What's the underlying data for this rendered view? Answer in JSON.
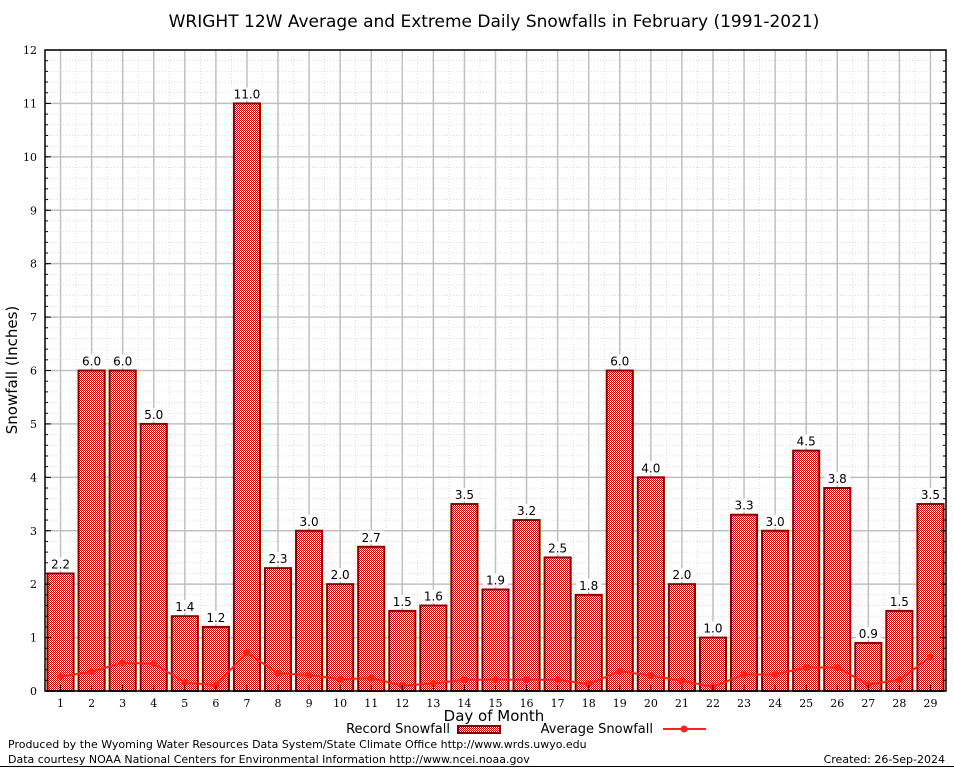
{
  "chart_data": {
    "type": "bar",
    "title": "WRIGHT 12W Average and Extreme Daily Snowfalls in February (1991-2021)",
    "xlabel": "Day of Month",
    "ylabel": "Snowfall (Inches)",
    "ylim": [
      0,
      12
    ],
    "yticks": [
      0,
      1,
      2,
      3,
      4,
      5,
      6,
      7,
      8,
      9,
      10,
      11,
      12
    ],
    "grid": true,
    "legend_placement": "bottom-center",
    "categories": [
      "1",
      "2",
      "3",
      "4",
      "5",
      "6",
      "7",
      "8",
      "9",
      "10",
      "11",
      "12",
      "13",
      "14",
      "15",
      "16",
      "17",
      "18",
      "19",
      "20",
      "21",
      "22",
      "23",
      "24",
      "25",
      "26",
      "27",
      "28",
      "29"
    ],
    "series": [
      {
        "name": "Record Snowfall",
        "kind": "bar",
        "color": "#8b0000",
        "values": [
          2.2,
          6.0,
          6.0,
          5.0,
          1.4,
          1.2,
          11.0,
          2.3,
          3.0,
          2.0,
          2.7,
          1.5,
          1.6,
          3.5,
          1.9,
          3.2,
          2.5,
          1.8,
          6.0,
          4.0,
          2.0,
          1.0,
          3.3,
          3.0,
          4.5,
          3.8,
          0.9,
          1.5,
          3.5
        ],
        "labels": [
          "2.2",
          "6.0",
          "6.0",
          "5.0",
          "1.4",
          "1.2",
          "11.0",
          "2.3",
          "3.0",
          "2.0",
          "2.7",
          "1.5",
          "1.6",
          "3.5",
          "1.9",
          "3.2",
          "2.5",
          "1.8",
          "6.0",
          "4.0",
          "2.0",
          "1.0",
          "3.3",
          "3.0",
          "4.5",
          "3.8",
          "0.9",
          "1.5",
          "3.5"
        ]
      },
      {
        "name": "Average Snowfall",
        "kind": "line",
        "color": "#ff2020",
        "values": [
          0.27,
          0.36,
          0.53,
          0.51,
          0.16,
          0.11,
          0.72,
          0.33,
          0.3,
          0.22,
          0.24,
          0.1,
          0.14,
          0.21,
          0.21,
          0.21,
          0.21,
          0.13,
          0.37,
          0.29,
          0.19,
          0.08,
          0.31,
          0.31,
          0.44,
          0.44,
          0.12,
          0.21,
          0.64
        ]
      }
    ]
  },
  "footer": {
    "line1": "Produced by the Wyoming Water Resources Data System/State Climate Office http://www.wrds.uwyo.edu",
    "line2": "Data courtesy NOAA National Centers for Environmental Information http://www.ncei.noaa.gov",
    "created": "Created: 26-Sep-2024"
  }
}
